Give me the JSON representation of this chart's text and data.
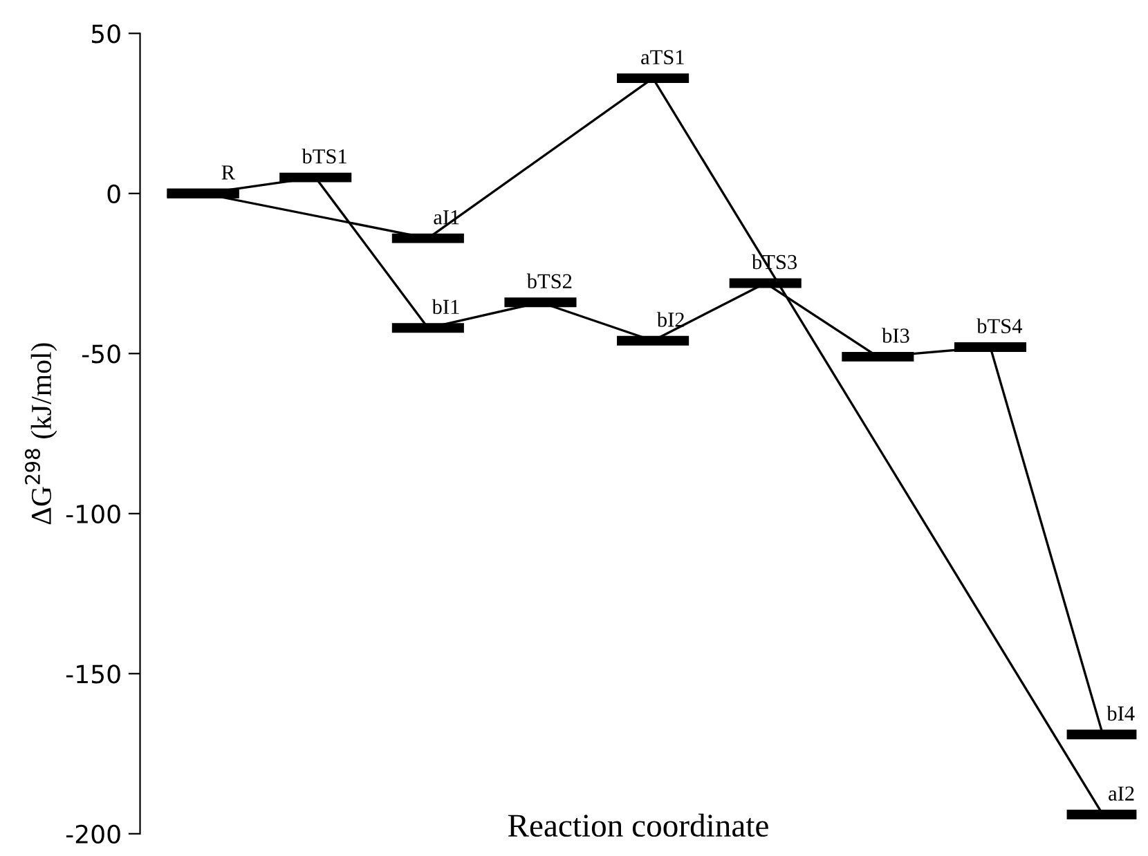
{
  "chart_data": {
    "type": "line",
    "xlabel": "Reaction coordinate",
    "ylabel": "ΔG$^{298}$ (kJ/mol)",
    "categories": [
      null,
      null,
      null,
      null,
      null,
      null,
      null,
      null,
      null
    ],
    "series": [
      {
        "values": [
          0,
          null,
          -14,
          null,
          36,
          null,
          null,
          null,
          -194
        ],
        "color": "#000000",
        "value_labels": [
          null,
          null,
          "aI1",
          null,
          "aTS1",
          null,
          null,
          null,
          "aI2"
        ]
      },
      {
        "values": [
          0,
          5,
          -42,
          -34,
          -46,
          -28,
          -51,
          -48,
          -169
        ],
        "color": "#000000",
        "value_labels": [
          "R",
          "bTS1",
          "bI1",
          "bTS2",
          "bI2",
          "bTS3",
          "bI3",
          "bTS4",
          "bI4"
        ]
      }
    ],
    "ylim": [
      -200,
      50
    ],
    "yticks": [
      -200,
      -150,
      -100,
      -50,
      0,
      50
    ],
    "tick_labels": "y",
    "grid": false,
    "legend": false
  }
}
